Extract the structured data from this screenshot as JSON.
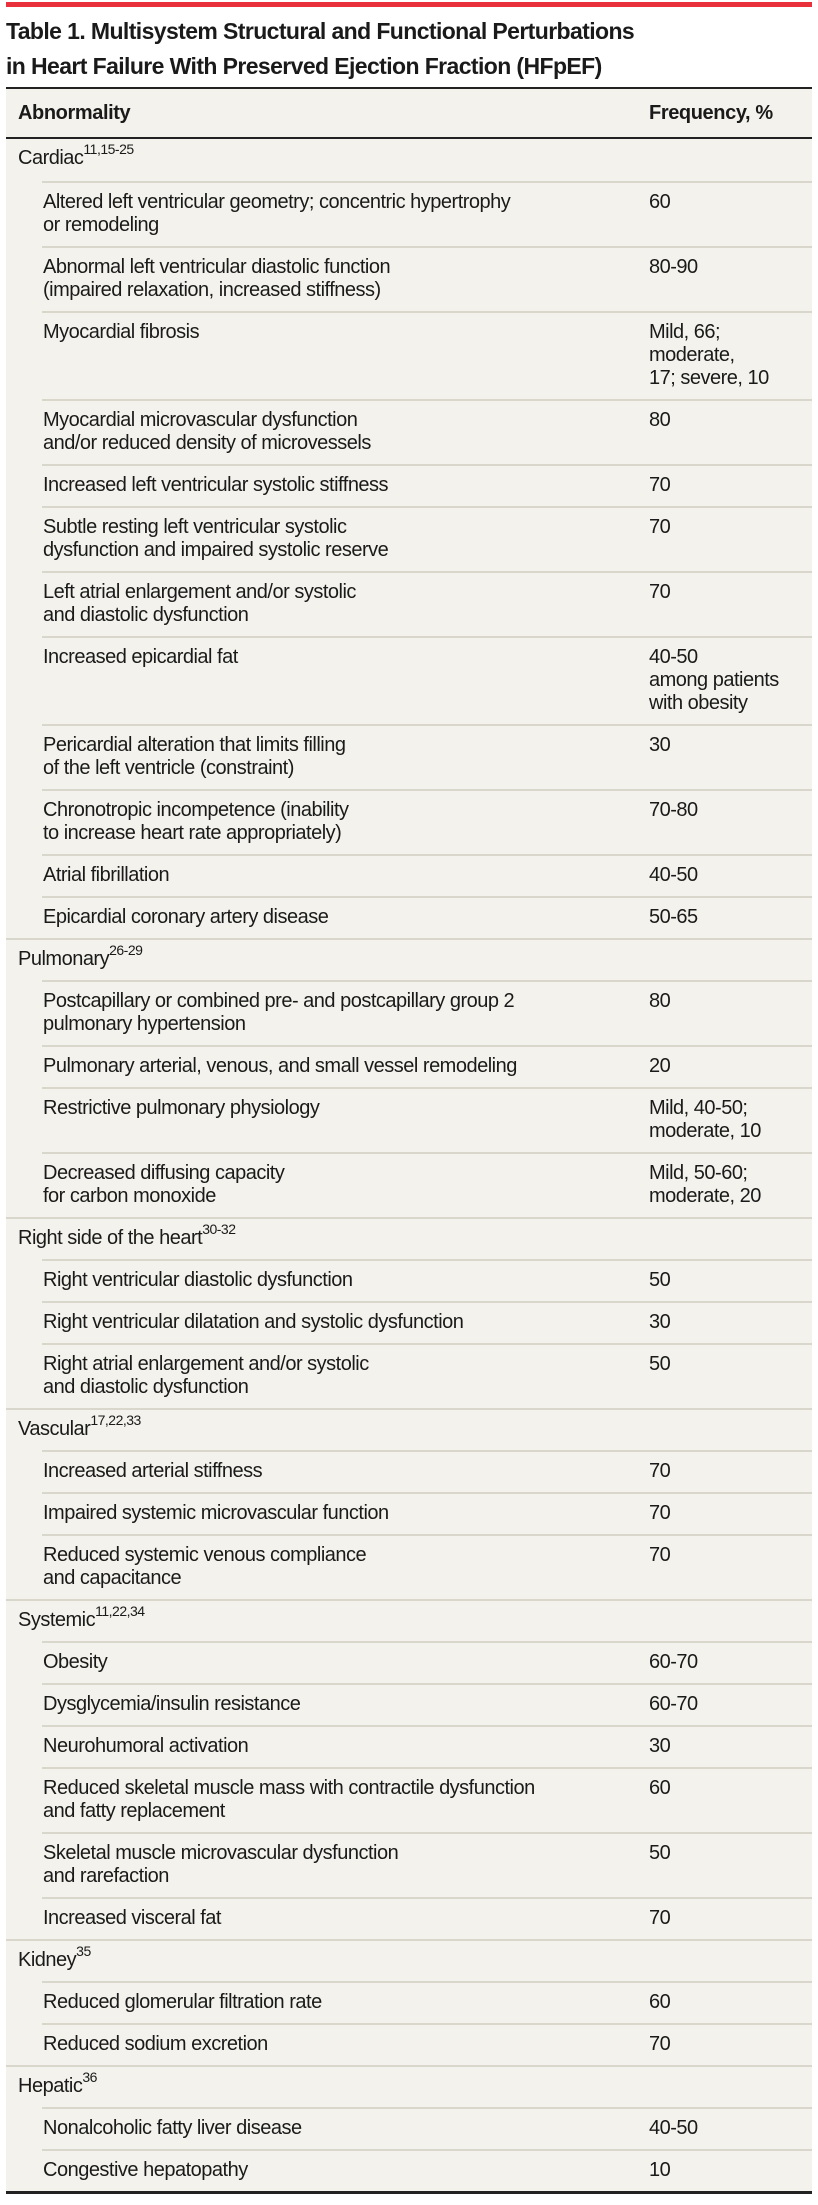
{
  "colors": {
    "accent_bar": "#e8313a",
    "table_bg": "#f3f2ec",
    "rule": "#222222",
    "separator": "#d9d7cc"
  },
  "title": {
    "line1": "Table 1. Multisystem Structural and Functional Perturbations",
    "line2": "in Heart Failure With Preserved Ejection Fraction (HFpEF)"
  },
  "header": {
    "col1": "Abnormality",
    "col2": "Frequency, %"
  },
  "sections": [
    {
      "label": "Cardiac",
      "refs": "11,15-25",
      "items": [
        {
          "name": "Altered left ventricular geometry; concentric hypertrophy\nor remodeling",
          "freq": "60"
        },
        {
          "name": "Abnormal left ventricular diastolic function\n(impaired relaxation, increased stiffness)",
          "freq": "80-90"
        },
        {
          "name": "Myocardial fibrosis",
          "freq": "Mild, 66;\nmoderate,\n17; severe, 10"
        },
        {
          "name": "Myocardial microvascular dysfunction\nand/or reduced density of microvessels",
          "freq": "80"
        },
        {
          "name": "Increased left ventricular systolic stiffness",
          "freq": "70"
        },
        {
          "name": "Subtle resting left ventricular systolic\ndysfunction and impaired systolic reserve",
          "freq": "70"
        },
        {
          "name": "Left atrial enlargement and/or systolic\nand diastolic dysfunction",
          "freq": "70"
        },
        {
          "name": "Increased epicardial fat",
          "freq": "40-50\namong patients\nwith obesity"
        },
        {
          "name": "Pericardial alteration that limits filling\nof the left ventricle (constraint)",
          "freq": "30"
        },
        {
          "name": "Chronotropic incompetence (inability\nto increase heart rate appropriately)",
          "freq": "70-80"
        },
        {
          "name": "Atrial fibrillation",
          "freq": "40-50"
        },
        {
          "name": "Epicardial coronary artery disease",
          "freq": "50-65"
        }
      ]
    },
    {
      "label": "Pulmonary",
      "refs": "26-29",
      "items": [
        {
          "name": "Postcapillary or combined pre- and postcapillary group 2\npulmonary hypertension",
          "freq": "80"
        },
        {
          "name": "Pulmonary arterial, venous, and small vessel remodeling",
          "freq": "20"
        },
        {
          "name": "Restrictive pulmonary physiology",
          "freq": "Mild, 40-50;\nmoderate, 10"
        },
        {
          "name": "Decreased diffusing capacity\nfor carbon monoxide",
          "freq": "Mild, 50-60;\nmoderate, 20"
        }
      ]
    },
    {
      "label": "Right side of the heart",
      "refs": "30-32",
      "items": [
        {
          "name": "Right ventricular diastolic dysfunction",
          "freq": "50"
        },
        {
          "name": "Right ventricular dilatation and systolic dysfunction",
          "freq": "30"
        },
        {
          "name": "Right atrial enlargement and/or systolic\nand diastolic dysfunction",
          "freq": "50"
        }
      ]
    },
    {
      "label": "Vascular",
      "refs": "17,22,33",
      "items": [
        {
          "name": "Increased arterial stiffness",
          "freq": "70"
        },
        {
          "name": "Impaired systemic microvascular function",
          "freq": "70"
        },
        {
          "name": "Reduced systemic venous compliance\nand capacitance",
          "freq": "70"
        }
      ]
    },
    {
      "label": "Systemic",
      "refs": "11,22,34",
      "items": [
        {
          "name": "Obesity",
          "freq": "60-70"
        },
        {
          "name": "Dysglycemia/insulin resistance",
          "freq": "60-70"
        },
        {
          "name": "Neurohumoral activation",
          "freq": "30"
        },
        {
          "name": "Reduced skeletal muscle mass with contractile dysfunction\nand fatty replacement",
          "freq": "60"
        },
        {
          "name": "Skeletal muscle microvascular dysfunction\nand rarefaction",
          "freq": "50"
        },
        {
          "name": "Increased visceral fat",
          "freq": "70"
        }
      ]
    },
    {
      "label": "Kidney",
      "refs": "35",
      "items": [
        {
          "name": "Reduced glomerular filtration rate",
          "freq": "60"
        },
        {
          "name": "Reduced sodium excretion",
          "freq": "70"
        }
      ]
    },
    {
      "label": "Hepatic",
      "refs": "36",
      "items": [
        {
          "name": "Nonalcoholic fatty liver disease",
          "freq": "40-50"
        },
        {
          "name": "Congestive hepatopathy",
          "freq": "10"
        }
      ]
    }
  ]
}
